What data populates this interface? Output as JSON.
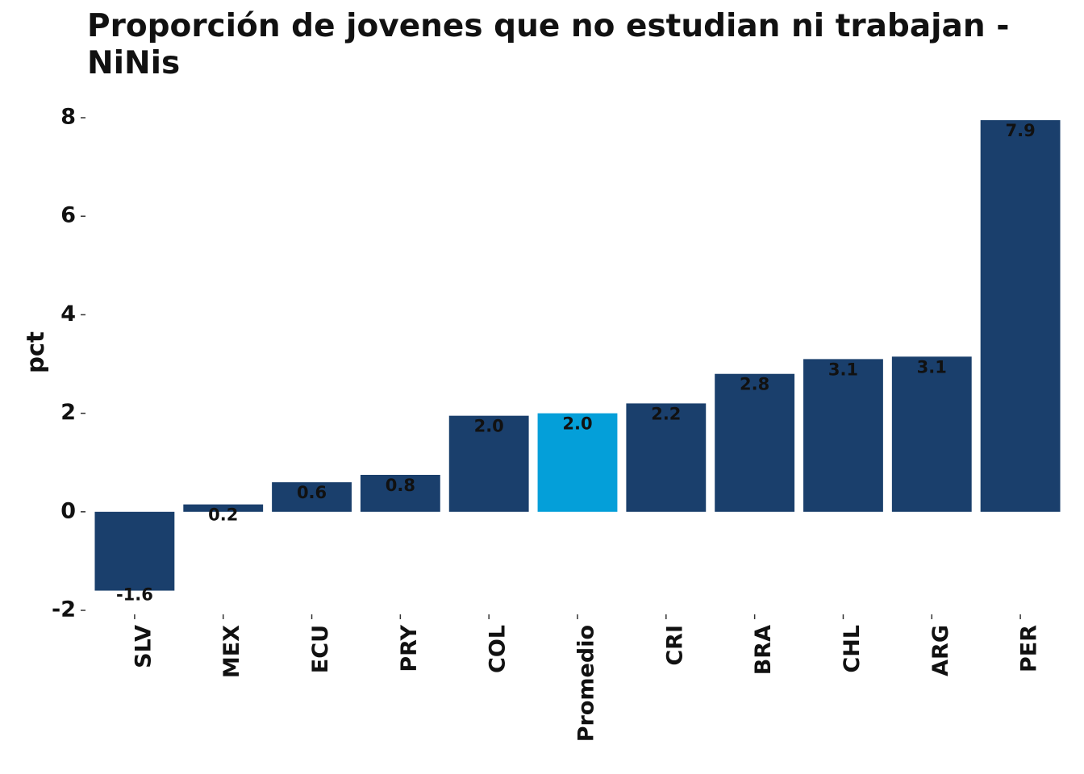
{
  "chart_data": {
    "type": "bar",
    "title": "Proporción de jovenes que no estudian ni trabajan - NiNis",
    "xlabel": "",
    "ylabel": "pct",
    "ylim": [
      -2,
      8
    ],
    "yticks": [
      "-2",
      "0",
      "2",
      "4",
      "6",
      "8"
    ],
    "grid": false,
    "categories": [
      "SLV",
      "MEX",
      "ECU",
      "PRY",
      "COL",
      "Promedio",
      "CRI",
      "BRA",
      "CHL",
      "ARG",
      "PER"
    ],
    "values": [
      -1.6,
      0.15,
      0.6,
      0.75,
      1.95,
      2.0,
      2.2,
      2.8,
      3.1,
      3.15,
      7.95
    ],
    "value_labels": [
      "-1.6",
      "0.2",
      "0.6",
      "0.8",
      "2.0",
      "2.0",
      "2.2",
      "2.8",
      "3.1",
      "3.1",
      "7.9"
    ],
    "colors": {
      "default": "#1a3f6c",
      "highlight": "#049fd9",
      "highlight_category": "Promedio"
    }
  }
}
